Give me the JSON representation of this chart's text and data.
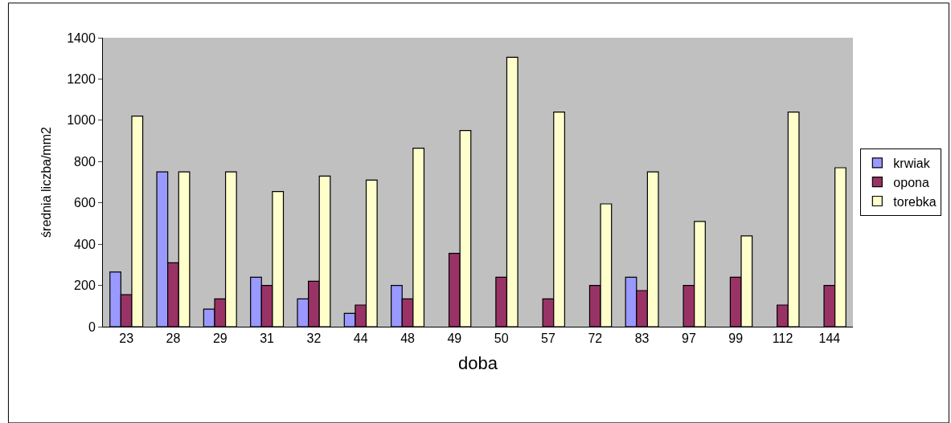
{
  "chart_data": {
    "type": "bar",
    "xlabel": "doba",
    "ylabel": "średnia liczba/mm2",
    "categories": [
      "23",
      "28",
      "29",
      "31",
      "32",
      "44",
      "48",
      "49",
      "50",
      "57",
      "72",
      "83",
      "97",
      "99",
      "112",
      "144"
    ],
    "series": [
      {
        "name": "krwiak",
        "color": "#9999ff",
        "values": [
          265,
          750,
          85,
          240,
          135,
          65,
          200,
          null,
          null,
          null,
          null,
          240,
          null,
          null,
          null,
          null
        ]
      },
      {
        "name": "opona",
        "color": "#993366",
        "values": [
          155,
          310,
          135,
          200,
          220,
          105,
          135,
          355,
          240,
          135,
          200,
          175,
          200,
          240,
          105,
          200
        ]
      },
      {
        "name": "torebka",
        "color": "#ffffcc",
        "values": [
          1020,
          750,
          750,
          655,
          730,
          710,
          865,
          950,
          1305,
          1040,
          595,
          750,
          510,
          440,
          1040,
          770
        ]
      }
    ],
    "ylim": [
      0,
      1400
    ],
    "yticks": [
      0,
      200,
      400,
      600,
      800,
      1000,
      1200,
      1400
    ],
    "grid": false,
    "legend": "right"
  }
}
